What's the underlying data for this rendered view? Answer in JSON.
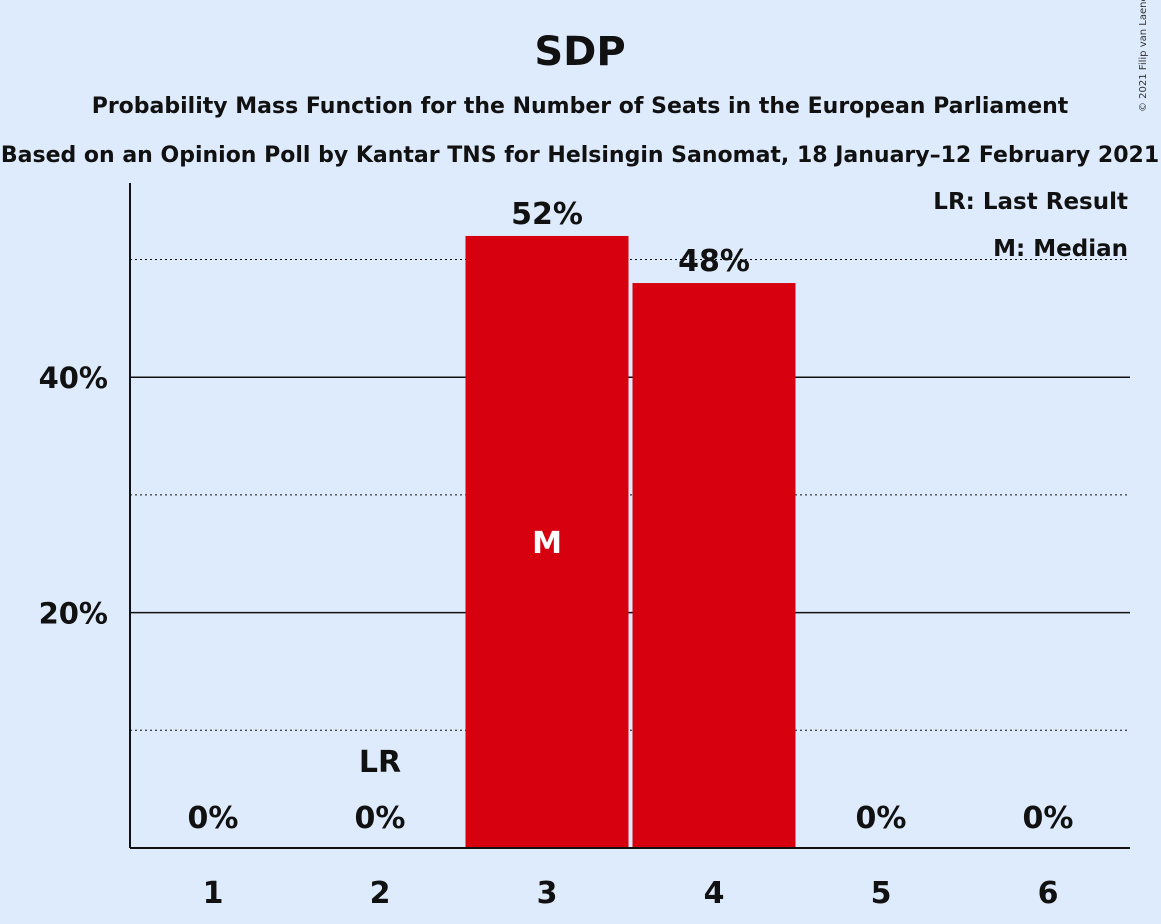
{
  "chart_data": {
    "type": "bar",
    "title": "SDP",
    "subtitle_line1": "Probability Mass Function for the Number of Seats in the European Parliament",
    "subtitle_line2": "Based on an Opinion Poll by Kantar TNS for Helsingin Sanomat, 18 January–12 February 2021",
    "categories": [
      "1",
      "2",
      "3",
      "4",
      "5",
      "6"
    ],
    "values": [
      0,
      0,
      52,
      48,
      0,
      0
    ],
    "value_labels": [
      "0%",
      "0%",
      "52%",
      "48%",
      "0%",
      "0%"
    ],
    "ylim": [
      0,
      56
    ],
    "yticks": [
      20,
      40
    ],
    "ytick_labels": [
      "20%",
      "40%"
    ],
    "minor_gridlines": [
      10,
      30,
      50
    ],
    "legend": [
      "LR: Last Result",
      "M: Median"
    ],
    "legend_position": "top-right",
    "last_result_category": "2",
    "last_result_marker": "LR",
    "median_category": "3",
    "median_marker": "M",
    "bar_color": "#d7000f",
    "background_color": "#deebfc",
    "copyright": "© 2021 Filip van Laenen"
  }
}
